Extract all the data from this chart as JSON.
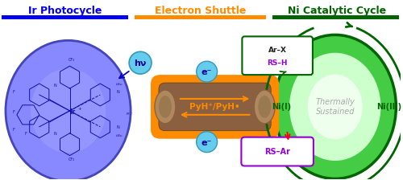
{
  "title_ir": "Ir Photocycle",
  "title_shuttle": "Electron Shuttle",
  "title_ni": "Ni Catalytic Cycle",
  "title_ir_color": "#0000EE",
  "title_shuttle_color": "#FF8C00",
  "title_ni_color": "#006400",
  "bar_ir_color": "#0000EE",
  "bar_shuttle_color": "#FF8C00",
  "bar_ni_color": "#006400",
  "ir_ellipse_fc": "#8888FF",
  "ir_ellipse_ec": "#4444BB",
  "ni_ellipse_fc": "#44CC44",
  "ni_ellipse_ec": "#006400",
  "ni_inner_fc": "#AAEEBB",
  "shuttle_box_color": "#FF8C00",
  "shuttle_inner_fc": "#8B6040",
  "shuttle_end_fc": "#A0825A",
  "shuttle_end_inner_fc": "#7A6040",
  "hv_circle_fc": "#66CCEE",
  "hv_circle_ec": "#3399BB",
  "e_circle_fc": "#66CCEE",
  "e_circle_ec": "#3399BB",
  "pyh_text": "PyH⁺/PyH•",
  "arrow_color_orange": "#FF8C00",
  "ni_cycle_arrow_color": "#006400",
  "reagent_box_ec": "#006400",
  "product_box_ec": "#9400D3",
  "hv_text": "hν",
  "e_text": "e⁻",
  "ni_i_text": "Ni(I)",
  "ni_iii_text": "Ni(III)",
  "thermally_text": "Thermally\nSustained",
  "ar_x_text": "Ar–X",
  "rs_h_text": "RS–H",
  "rs_ar_text": "RS–Ar",
  "background_color": "#FFFFFF",
  "ir_lc": "#1111AA",
  "coord_lc": "#3333AA"
}
